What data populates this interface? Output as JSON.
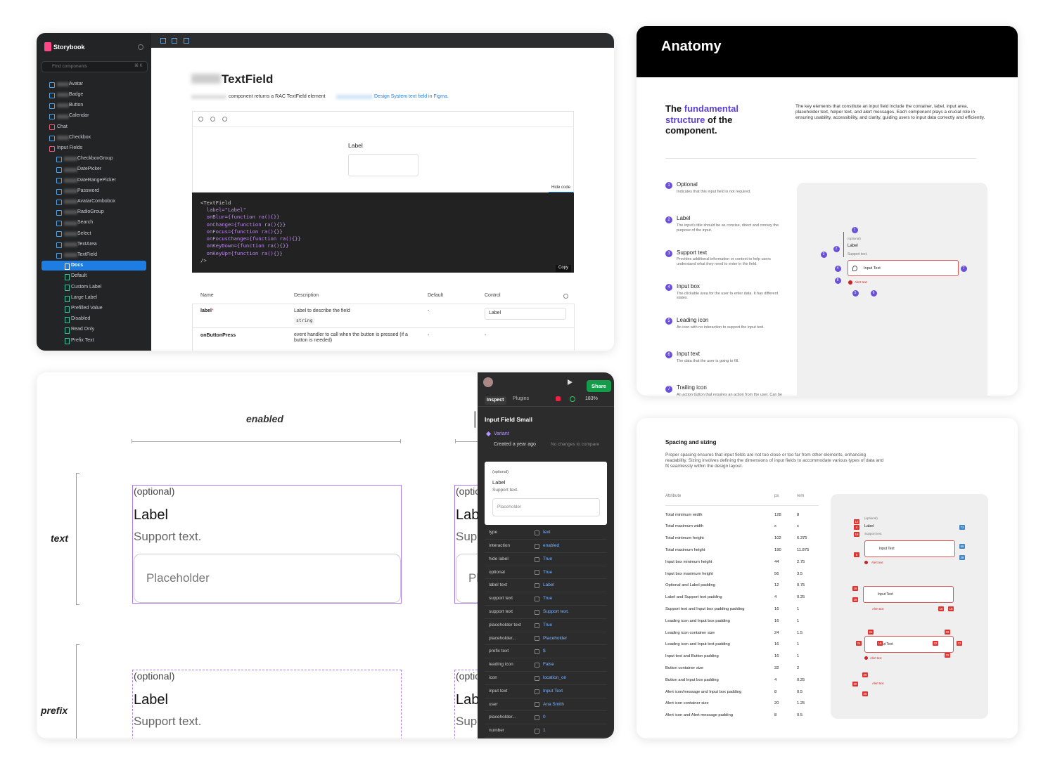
{
  "storybook": {
    "brand": "Storybook",
    "search": "Find components",
    "shortcut": "⌘ K",
    "sidebar": [
      "Avatar",
      "Badge",
      "Button",
      "Calendar",
      "Chat",
      "Checkbox",
      "Input Fields",
      "CheckboxGroup",
      "DatePicker",
      "DateRangePicker",
      "Password",
      "AvatarCombobox",
      "RadioGroup",
      "Search",
      "Select",
      "TextArea",
      "TextField",
      "Docs",
      "Default",
      "Custom Label",
      "Large Label",
      "Prefilled Value",
      "Disabled",
      "Read Only",
      "Prefix Text"
    ],
    "title": "TextField",
    "description": "component returns a RAC TextField element",
    "link": "Design System text field in Figma.",
    "preview_label": "Label",
    "hide_code": "Hide code",
    "code": [
      "<TextField",
      "  label=\"Label\"",
      "  onBlur={function ra(){}}",
      "  onChange={function ra(){}}",
      "  onFocus={function ra(){}}",
      "  onFocusChange={function ra(){}}",
      "  onKeyDown={function ra(){}}",
      "  onKeyUp={function ra(){}}",
      "/>"
    ],
    "copy": "Copy",
    "table": {
      "headers": [
        "Name",
        "Description",
        "Default",
        "Control"
      ],
      "required_mark": "*",
      "type": "string",
      "rows": [
        [
          "label",
          "Label to describe the field",
          "-",
          "Label"
        ],
        [
          "onButtonPress",
          "event handler to call when the button is pressed (if a button is needed)",
          "-",
          "-"
        ]
      ]
    }
  },
  "anatomy": {
    "title": "Anatomy",
    "heading": [
      "The ",
      "fundamental structure",
      " of the component."
    ],
    "description": "The key elements that constitute an input field include the container, label, input area, placeholder text, helper text, and alert messages. Each component plays a crucial role in ensuring usability, accessibility, and clarity, guiding users to input data correctly and efficiently.",
    "items": [
      {
        "number": 1,
        "title": "Optional",
        "text": "Indicates that this input field is not required."
      },
      {
        "number": 2,
        "title": "Label",
        "text": "The input's title should be as concise, direct and convey the purpose of the input."
      },
      {
        "number": 3,
        "title": "Support text",
        "text": "Provides additional information or context to help users understand what they need to enter in the field."
      },
      {
        "number": 4,
        "title": "Input box",
        "text": "The clickable area for the user to enter data. It has different states."
      },
      {
        "number": 5,
        "title": "Leading icon",
        "text": "An icon with no interaction to support the input text."
      },
      {
        "number": 6,
        "title": "Input text",
        "text": "The data that the user is going to fill."
      },
      {
        "number": 7,
        "title": "Trailing icon",
        "text": "An action button that requires an action from the user. Can be used for starting a search or open new interactions (e.g: Calendar)"
      }
    ],
    "diagram": {
      "optional": "(optional)",
      "label": "Label",
      "support": "Support text.",
      "input": "Input Text",
      "alert": "Alert text",
      "markers": [
        1,
        2,
        3,
        4,
        5,
        6,
        7,
        8
      ]
    }
  },
  "figma": {
    "column": "enabled",
    "rows": [
      "text",
      "prefix"
    ],
    "optional": "(optional)",
    "label": "Label",
    "support": "Support text.",
    "placeholder": "Placeholder",
    "inspector": {
      "share": "Share",
      "tabs": [
        "Inspect",
        "Plugins"
      ],
      "zoom": "183%",
      "component": "Input Field Small",
      "variant": "Variant",
      "created": "Created a year ago",
      "changes": "No changes to compare",
      "preview": {
        "optional": "(optional)",
        "label": "Label",
        "support": "Support text.",
        "placeholder": "Placeholder"
      },
      "props": [
        [
          "type",
          "text"
        ],
        [
          "interaction",
          "enabled"
        ],
        [
          "hide label",
          "True"
        ],
        [
          "optional",
          "True"
        ],
        [
          "label text",
          "Label"
        ],
        [
          "support text",
          "True"
        ],
        [
          "support text",
          "Support text."
        ],
        [
          "placeholder text",
          "True"
        ],
        [
          "placeholder...",
          "Placeholder"
        ],
        [
          "prefix text",
          "$"
        ],
        [
          "leading icon",
          "False"
        ],
        [
          "icon",
          "location_on"
        ],
        [
          "input text",
          "Input Text"
        ],
        [
          "user",
          "Ana Smith"
        ],
        [
          "placeholder...",
          "0"
        ],
        [
          "number",
          "1"
        ]
      ]
    }
  },
  "spacing": {
    "title": "Spacing and sizing",
    "description": "Proper spacing ensures that input fields are not too close or too far from other elements, enhancing readability. Sizing involves defining the dimensions of input fields to accommodate various types of data and fit seamlessly within the design layout.",
    "headers": [
      "Attribute",
      "px",
      "rem"
    ],
    "rows": [
      [
        "Total minimum width",
        128,
        8
      ],
      [
        "Total maximum width",
        "x",
        "x"
      ],
      [
        "Total minimum height",
        102,
        6.375
      ],
      [
        "Total maximum height",
        190,
        11.875
      ],
      [
        "Input box minimum height",
        44,
        2.75
      ],
      [
        "Input box maximum height",
        56,
        3.5
      ],
      [
        "Optional and Label padding",
        12,
        0.75
      ],
      [
        "Label and Support text padding",
        4,
        0.25
      ],
      [
        "Support text and Input box padding padding",
        16,
        1
      ],
      [
        "Leading icon and Input box padding",
        16,
        1
      ],
      [
        "Leading icon container size",
        24,
        1.5
      ],
      [
        "Leading icon and Input text padding",
        16,
        1
      ],
      [
        "Input text and Button padding",
        16,
        1
      ],
      [
        "Button container size",
        32,
        2
      ],
      [
        "Button and Input box padding",
        4,
        0.25
      ],
      [
        "Alert icon/message and Input box padding",
        8,
        0.5
      ],
      [
        "Alert icon container size",
        20,
        1.25
      ],
      [
        "Alert icon and Alert message padding",
        8,
        0.5
      ]
    ],
    "diagram": {
      "optional": "(optional)",
      "label": "Label",
      "support": "Support text.",
      "input": "Input Text",
      "alert": "Alert text",
      "badges": [
        {
          "value": 12,
          "color": "#e0332f"
        },
        {
          "value": 4,
          "color": "#e0332f"
        },
        {
          "value": 16,
          "color": "#e0332f"
        },
        {
          "value": 72,
          "color": "#3d86c6"
        },
        {
          "value": 56,
          "color": "#3d86c6"
        },
        {
          "value": 28,
          "color": "#3d86c6"
        },
        {
          "value": 8,
          "color": "#e0332f"
        },
        {
          "value": 16,
          "color": "#e0332f"
        },
        {
          "value": 16,
          "color": "#e0332f"
        },
        {
          "value": 16,
          "color": "#e0332f"
        },
        {
          "value": 16,
          "color": "#e0332f"
        },
        {
          "value": 24,
          "color": "#e0332f"
        },
        {
          "value": 24,
          "color": "#e0332f"
        },
        {
          "value": 16,
          "color": "#e0332f"
        },
        {
          "value": 32,
          "color": "#e0332f"
        },
        {
          "value": 32,
          "color": "#e0332f"
        },
        {
          "value": 32,
          "color": "#e0332f"
        },
        {
          "value": 32,
          "color": "#e0332f"
        },
        {
          "value": 20,
          "color": "#e0332f"
        },
        {
          "value": 20,
          "color": "#e0332f"
        },
        {
          "value": 20,
          "color": "#e0332f"
        }
      ]
    }
  }
}
